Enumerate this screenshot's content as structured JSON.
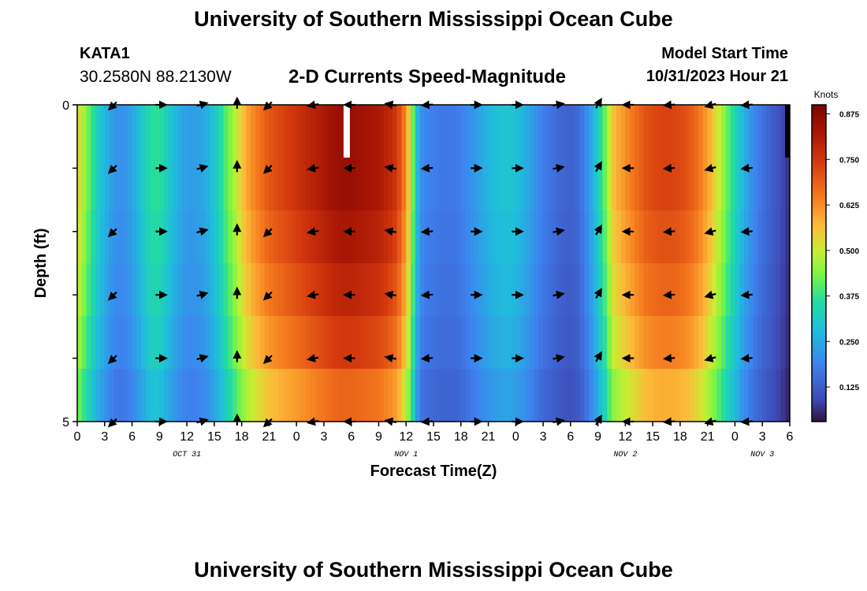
{
  "header": {
    "title": "University of Southern Mississippi Ocean Cube",
    "station_id": "KATA1",
    "station_coords": "30.2580N  88.2130W",
    "chart_heading": "2-D Currents Speed-Magnitude",
    "model_label": "Model Start Time",
    "model_time": "10/31/2023 Hour 21"
  },
  "footer": {
    "title": "University of Southern Mississippi Ocean Cube"
  },
  "chart_data": {
    "type": "heatmap",
    "title": "2-D Currents Speed-Magnitude",
    "xlabel": "Forecast Time(Z)",
    "ylabel": "Depth (ft)",
    "xlim": [
      0,
      78
    ],
    "ylim": [
      5,
      0
    ],
    "x_ticks": [
      0,
      3,
      6,
      9,
      12,
      15,
      18,
      21,
      24,
      27,
      30,
      33,
      36,
      39,
      42,
      45,
      48,
      51,
      54,
      57,
      60,
      63,
      66,
      69,
      72,
      75,
      78
    ],
    "x_tick_labels": [
      "0",
      "3",
      "6",
      "9",
      "12",
      "15",
      "18",
      "21",
      "0",
      "3",
      "6",
      "9",
      "12",
      "15",
      "18",
      "21",
      "0",
      "3",
      "6",
      "9",
      "12",
      "15",
      "18",
      "21",
      "0",
      "3",
      "6"
    ],
    "y_tick_labels": [
      "0",
      "5"
    ],
    "date_labels": [
      {
        "x": 12,
        "label": "OCT 31"
      },
      {
        "x": 36,
        "label": "NOV 1"
      },
      {
        "x": 60,
        "label": "NOV 2"
      },
      {
        "x": 75,
        "label": "NOV 3"
      }
    ],
    "colorbar": {
      "label": "Knots",
      "min": 0.03,
      "max": 0.9,
      "ticks": [
        0.125,
        0.25,
        0.375,
        0.5,
        0.625,
        0.75,
        0.875
      ],
      "tick_labels": [
        "0.125",
        "0.250",
        "0.375",
        "0.500",
        "0.625",
        "0.750",
        "0.875"
      ]
    },
    "missing_x": [
      29.5
    ],
    "speed_profile": {
      "x": [
        0,
        1,
        2,
        3,
        4,
        5,
        6,
        7,
        8,
        9,
        10,
        11,
        12,
        13,
        14,
        15,
        16,
        17,
        18,
        19,
        20,
        21,
        22,
        23,
        24,
        25,
        26,
        27,
        28,
        29,
        30,
        31,
        32,
        33,
        34,
        35,
        36,
        36.5,
        37,
        37.5,
        38,
        39,
        40,
        41,
        42,
        43,
        44,
        45,
        46,
        47,
        48,
        49,
        50,
        51,
        52,
        53,
        54,
        55,
        56,
        57,
        58,
        58.5,
        59,
        60,
        61,
        62,
        63,
        64,
        65,
        66,
        67,
        68,
        69,
        70,
        71,
        72,
        73,
        74,
        75,
        76,
        77,
        78
      ],
      "speed": [
        0.55,
        0.44,
        0.34,
        0.27,
        0.22,
        0.21,
        0.24,
        0.3,
        0.36,
        0.37,
        0.31,
        0.26,
        0.23,
        0.23,
        0.25,
        0.3,
        0.38,
        0.46,
        0.55,
        0.62,
        0.66,
        0.7,
        0.72,
        0.74,
        0.76,
        0.78,
        0.8,
        0.82,
        0.84,
        0.85,
        0.85,
        0.84,
        0.83,
        0.82,
        0.79,
        0.75,
        0.62,
        0.5,
        0.33,
        0.22,
        0.19,
        0.18,
        0.17,
        0.17,
        0.18,
        0.21,
        0.24,
        0.27,
        0.29,
        0.3,
        0.29,
        0.26,
        0.22,
        0.18,
        0.16,
        0.14,
        0.13,
        0.15,
        0.22,
        0.32,
        0.45,
        0.54,
        0.58,
        0.62,
        0.66,
        0.7,
        0.72,
        0.73,
        0.73,
        0.72,
        0.7,
        0.66,
        0.6,
        0.52,
        0.43,
        0.34,
        0.26,
        0.2,
        0.16,
        0.13,
        0.1,
        0.06
      ]
    },
    "depth_factors": [
      1.0,
      1.0,
      0.97,
      0.93,
      0.88,
      0.8
    ],
    "arrow_x": [
      4,
      9,
      13.5,
      17.5,
      21,
      26,
      30,
      34.5,
      38.5,
      43.5,
      48,
      52.5,
      57,
      60.5,
      65,
      69.5,
      73.5
    ],
    "arrow_depths": [
      0,
      1,
      2,
      3,
      4,
      5
    ],
    "arrow_dir_deg": [
      225,
      0,
      15,
      90,
      225,
      190,
      180,
      170,
      185,
      0,
      0,
      10,
      60,
      180,
      185,
      195,
      185
    ]
  }
}
